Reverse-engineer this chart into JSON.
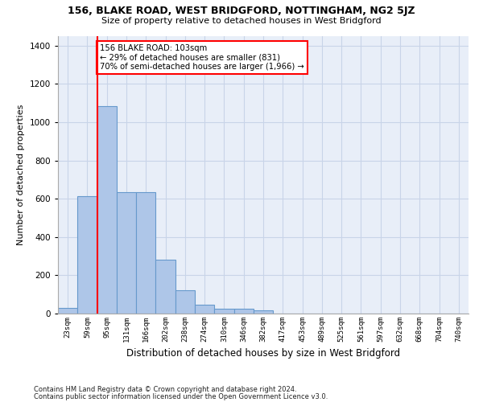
{
  "title": "156, BLAKE ROAD, WEST BRIDGFORD, NOTTINGHAM, NG2 5JZ",
  "subtitle": "Size of property relative to detached houses in West Bridgford",
  "xlabel": "Distribution of detached houses by size in West Bridgford",
  "ylabel": "Number of detached properties",
  "footnote1": "Contains HM Land Registry data © Crown copyright and database right 2024.",
  "footnote2": "Contains public sector information licensed under the Open Government Licence v3.0.",
  "bin_labels": [
    "23sqm",
    "59sqm",
    "95sqm",
    "131sqm",
    "166sqm",
    "202sqm",
    "238sqm",
    "274sqm",
    "310sqm",
    "346sqm",
    "382sqm",
    "417sqm",
    "453sqm",
    "489sqm",
    "525sqm",
    "561sqm",
    "597sqm",
    "632sqm",
    "668sqm",
    "704sqm",
    "740sqm"
  ],
  "bar_values": [
    30,
    615,
    1085,
    635,
    635,
    280,
    120,
    45,
    25,
    25,
    15,
    0,
    0,
    0,
    0,
    0,
    0,
    0,
    0,
    0,
    0
  ],
  "bar_color": "#aec6e8",
  "bar_edge_color": "#6699cc",
  "grid_color": "#c8d4e8",
  "background_color": "#e8eef8",
  "red_line_bin_index": 2,
  "annotation_line1": "156 BLAKE ROAD: 103sqm",
  "annotation_line2": "← 29% of detached houses are smaller (831)",
  "annotation_line3": "70% of semi-detached houses are larger (1,966) →",
  "annotation_box_color": "white",
  "annotation_box_edge_color": "red",
  "ylim": [
    0,
    1450
  ],
  "yticks": [
    0,
    200,
    400,
    600,
    800,
    1000,
    1200,
    1400
  ]
}
